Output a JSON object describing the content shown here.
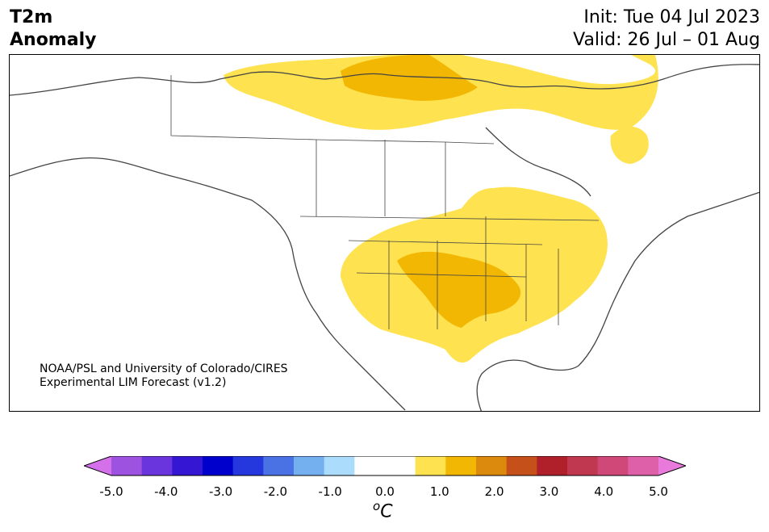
{
  "header": {
    "variable": "T2m",
    "field": "Anomaly",
    "init": "Init: Tue 04 Jul 2023",
    "valid": "Valid: 26 Jul – 01 Aug"
  },
  "credit": {
    "line1": "NOAA/PSL and University of Colorado/CIRES",
    "line2": "Experimental LIM Forecast (v1.2)"
  },
  "colorbar": {
    "unit_sup": "o",
    "unit": "C",
    "ticks": [
      "-5.0",
      "-4.0",
      "-3.0",
      "-2.0",
      "-1.0",
      "0.0",
      "1.0",
      "2.0",
      "3.0",
      "4.0",
      "5.0"
    ],
    "colors": [
      "#d470ea",
      "#9e52e0",
      "#6a35dd",
      "#3516d2",
      "#0000cc",
      "#2538de",
      "#4a72e4",
      "#74b0f0",
      "#acdcfb",
      "#ffffff",
      "#ffffff",
      "#ffe24f",
      "#f2b702",
      "#dc8a0e",
      "#c6501a",
      "#b0202a",
      "#c03850",
      "#d04878",
      "#dd60a8",
      "#e77ada"
    ]
  },
  "legend_colors": {
    "anom_0p5_1": "#ffe24f",
    "anom_1_1p5": "#f2b702",
    "border": "#444444"
  }
}
